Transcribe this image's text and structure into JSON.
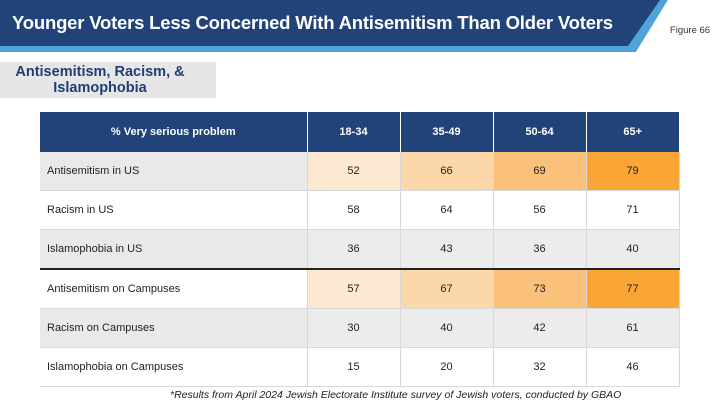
{
  "header": {
    "title": "Younger Voters Less Concerned With Antisemitism Than Older Voters",
    "figure_label": "Figure 66",
    "colors": {
      "banner": "#22437a",
      "accent": "#4fa3d8"
    }
  },
  "subtitle": "Antisemitism, Racism, & Islamophobia",
  "footnote": "*Results from April 2024 Jewish Electorate Institute survey of Jewish voters, conducted by GBAO",
  "chart_data": {
    "type": "table",
    "title": "Antisemitism, Racism, & Islamophobia",
    "row_header": "% Very serious problem",
    "columns": [
      "18-34",
      "35-49",
      "50-64",
      "65+"
    ],
    "rows": [
      {
        "label": "Antisemitism in US",
        "values": [
          52,
          66,
          69,
          79
        ],
        "highlight": true
      },
      {
        "label": "Racism in US",
        "values": [
          58,
          64,
          56,
          71
        ],
        "highlight": false
      },
      {
        "label": "Islamophobia in US",
        "values": [
          36,
          43,
          36,
          40
        ],
        "highlight": false
      },
      {
        "label": "Antisemitism on Campuses",
        "values": [
          57,
          67,
          73,
          77
        ],
        "highlight": true
      },
      {
        "label": "Racism on Campuses",
        "values": [
          30,
          40,
          42,
          61
        ],
        "highlight": false
      },
      {
        "label": "Islamophobia on Campuses",
        "values": [
          15,
          20,
          32,
          46
        ],
        "highlight": false
      }
    ],
    "highlight_colors": [
      "#fde9d2",
      "#fcd7a9",
      "#fbc07a",
      "#f9a635"
    ]
  }
}
